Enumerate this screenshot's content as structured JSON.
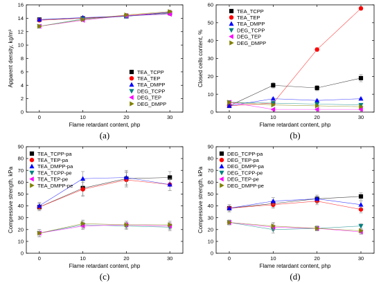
{
  "chart_data": [
    {
      "panel": "(a)",
      "type": "scatter",
      "xlabel": "Flame retardant content, php",
      "ylabel": "Apparent density, kg/m³",
      "xlim": [
        -3,
        33
      ],
      "ylim": [
        0,
        16
      ],
      "xticks": [
        0,
        10,
        20,
        30
      ],
      "yticks": [
        0,
        2,
        4,
        6,
        8,
        10,
        12,
        14,
        16
      ],
      "legend": "bottom-right",
      "series": [
        {
          "name": "TEA_TCPP",
          "marker": "square",
          "color": "#000000",
          "x": [
            0,
            10,
            20,
            30
          ],
          "y": [
            13.8,
            14.0,
            14.3,
            14.8
          ],
          "err": [
            0.2,
            0.2,
            0.2,
            0.2
          ]
        },
        {
          "name": "TEA_TEP",
          "marker": "circle",
          "color": "#ff0000",
          "x": [
            0,
            10,
            20,
            30
          ],
          "y": [
            13.7,
            14.0,
            14.4,
            14.9
          ],
          "err": [
            0.2,
            0.2,
            0.2,
            0.2
          ]
        },
        {
          "name": "TEA_DMPP",
          "marker": "triangle-up",
          "color": "#0000ff",
          "x": [
            0,
            10,
            20,
            30
          ],
          "y": [
            13.8,
            14.1,
            14.3,
            14.9
          ],
          "err": [
            0.2,
            0.2,
            0.2,
            0.2
          ]
        },
        {
          "name": "DEG_TCPP",
          "marker": "triangle-down",
          "color": "#008080",
          "x": [
            0,
            10,
            20,
            30
          ],
          "y": [
            12.8,
            13.9,
            14.3,
            14.7
          ],
          "err": [
            0.2,
            0.2,
            0.2,
            0.2
          ]
        },
        {
          "name": "DEG_TEP",
          "marker": "triangle-left",
          "color": "#ff00ff",
          "x": [
            0,
            10,
            20,
            30
          ],
          "y": [
            12.8,
            13.7,
            14.4,
            14.6
          ],
          "err": [
            0.2,
            0.2,
            0.2,
            0.2
          ]
        },
        {
          "name": "DEG_DMPP",
          "marker": "triangle-right",
          "color": "#808000",
          "x": [
            0,
            10,
            20,
            30
          ],
          "y": [
            12.8,
            13.8,
            14.5,
            15.0
          ],
          "err": [
            0.2,
            0.2,
            0.2,
            0.2
          ]
        }
      ]
    },
    {
      "panel": "(b)",
      "type": "scatter",
      "xlabel": "Flame retardant content, php",
      "ylabel": "Closed cells content, %",
      "xlim": [
        -3,
        33
      ],
      "ylim": [
        0,
        60
      ],
      "xticks": [
        0,
        10,
        20,
        30
      ],
      "yticks": [
        0,
        10,
        20,
        30,
        40,
        50,
        60
      ],
      "legend": "top-left",
      "series": [
        {
          "name": "TEA_TCPP",
          "marker": "square",
          "color": "#000000",
          "x": [
            0,
            10,
            20,
            30
          ],
          "y": [
            3.5,
            15.0,
            13.5,
            19.0
          ],
          "err": [
            1.0,
            1.5,
            1.5,
            2.0
          ]
        },
        {
          "name": "TEA_TEP",
          "marker": "circle",
          "color": "#ff0000",
          "x": [
            0,
            10,
            20,
            30
          ],
          "y": [
            3.5,
            5.0,
            35.0,
            58.0
          ],
          "err": [
            0.5,
            0.5,
            1.0,
            1.0
          ]
        },
        {
          "name": "TEA_DMPP",
          "marker": "triangle-up",
          "color": "#0000ff",
          "x": [
            0,
            10,
            20,
            30
          ],
          "y": [
            3.5,
            7.5,
            6.5,
            7.5
          ],
          "err": [
            0.5,
            0.5,
            0.5,
            0.5
          ]
        },
        {
          "name": "DEG_TCPP",
          "marker": "triangle-down",
          "color": "#008080",
          "x": [
            0,
            10,
            20,
            30
          ],
          "y": [
            5.5,
            5.0,
            4.5,
            4.0
          ],
          "err": [
            0.5,
            0.5,
            0.5,
            0.5
          ]
        },
        {
          "name": "DEG_TEP",
          "marker": "triangle-left",
          "color": "#ff00ff",
          "x": [
            0,
            10,
            20,
            30
          ],
          "y": [
            5.5,
            1.5,
            1.5,
            1.5
          ],
          "err": [
            0.5,
            0.5,
            0.5,
            0.5
          ]
        },
        {
          "name": "DEG_DMPP",
          "marker": "triangle-right",
          "color": "#808000",
          "x": [
            0,
            10,
            20,
            30
          ],
          "y": [
            5.5,
            4.0,
            3.5,
            3.0
          ],
          "err": [
            0.5,
            0.5,
            0.5,
            0.5
          ]
        }
      ]
    },
    {
      "panel": "(c)",
      "type": "scatter",
      "xlabel": "Flame retardant content, php",
      "ylabel": "Compressive strength, kPa",
      "xlim": [
        -3,
        33
      ],
      "ylim": [
        0,
        90
      ],
      "xticks": [
        0,
        10,
        20,
        30
      ],
      "yticks": [
        0,
        10,
        20,
        30,
        40,
        50,
        60,
        70,
        80,
        90
      ],
      "legend": "top-left",
      "series": [
        {
          "name": "TEA_TCPP-pa",
          "marker": "square",
          "color": "#000000",
          "x": [
            0,
            10,
            20,
            30
          ],
          "y": [
            39,
            55,
            63,
            64
          ],
          "err": [
            3,
            6,
            6,
            5
          ]
        },
        {
          "name": "TEA_TEP-pa",
          "marker": "circle",
          "color": "#ff0000",
          "x": [
            0,
            10,
            20,
            30
          ],
          "y": [
            39,
            54,
            62,
            58
          ],
          "err": [
            3,
            6,
            6,
            5
          ]
        },
        {
          "name": "TEA_DMPP-pa",
          "marker": "triangle-up",
          "color": "#0000ff",
          "x": [
            0,
            10,
            20,
            30
          ],
          "y": [
            40,
            63,
            64,
            58
          ],
          "err": [
            3,
            6,
            6,
            5
          ]
        },
        {
          "name": "TEA_TCPP-pe",
          "marker": "triangle-down",
          "color": "#008080",
          "x": [
            0,
            10,
            20,
            30
          ],
          "y": [
            17,
            24,
            23,
            22
          ],
          "err": [
            3,
            3,
            3,
            3
          ]
        },
        {
          "name": "TEA_TEP-pe",
          "marker": "triangle-left",
          "color": "#ff00ff",
          "x": [
            0,
            10,
            20,
            30
          ],
          "y": [
            17,
            23,
            24,
            23
          ],
          "err": [
            3,
            3,
            3,
            3
          ]
        },
        {
          "name": "TEA_DMPP-pe",
          "marker": "triangle-right",
          "color": "#808000",
          "x": [
            0,
            10,
            20,
            30
          ],
          "y": [
            17,
            25,
            24,
            24
          ],
          "err": [
            3,
            3,
            3,
            3
          ]
        }
      ]
    },
    {
      "panel": "(d)",
      "type": "scatter",
      "xlabel": "Flame retardant content, php",
      "ylabel": "Compressive strength, kPa",
      "xlim": [
        -3,
        33
      ],
      "ylim": [
        0,
        90
      ],
      "xticks": [
        0,
        10,
        20,
        30
      ],
      "yticks": [
        0,
        10,
        20,
        30,
        40,
        50,
        60,
        70,
        80,
        90
      ],
      "legend": "top-left",
      "series": [
        {
          "name": "DEG_TCPP-pa",
          "marker": "square",
          "color": "#000000",
          "x": [
            0,
            10,
            20,
            30
          ],
          "y": [
            38,
            42,
            46,
            48
          ],
          "err": [
            3,
            3,
            3,
            3
          ]
        },
        {
          "name": "DEG_TEP-pa",
          "marker": "circle",
          "color": "#ff0000",
          "x": [
            0,
            10,
            20,
            30
          ],
          "y": [
            38,
            41,
            44,
            37
          ],
          "err": [
            3,
            3,
            3,
            3
          ]
        },
        {
          "name": "DEG_DMPP-pa",
          "marker": "triangle-up",
          "color": "#0000ff",
          "x": [
            0,
            10,
            20,
            30
          ],
          "y": [
            38,
            44,
            46,
            41
          ],
          "err": [
            3,
            3,
            3,
            3
          ]
        },
        {
          "name": "DEG_TCPP-pe",
          "marker": "triangle-down",
          "color": "#008080",
          "x": [
            0,
            10,
            20,
            30
          ],
          "y": [
            26,
            20,
            21,
            23
          ],
          "err": [
            2,
            3,
            2,
            2
          ]
        },
        {
          "name": "DEG_TEP-pe",
          "marker": "triangle-left",
          "color": "#ff00ff",
          "x": [
            0,
            10,
            20,
            30
          ],
          "y": [
            26,
            22,
            21,
            18
          ],
          "err": [
            2,
            3,
            2,
            2
          ]
        },
        {
          "name": "DEG_DMPP-pe",
          "marker": "triangle-right",
          "color": "#808000",
          "x": [
            0,
            10,
            20,
            30
          ],
          "y": [
            26,
            23,
            21,
            19
          ],
          "err": [
            2,
            3,
            2,
            2
          ]
        }
      ]
    }
  ]
}
